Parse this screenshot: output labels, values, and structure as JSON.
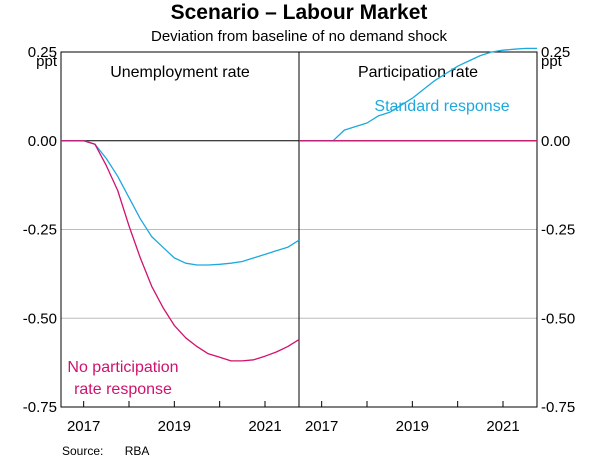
{
  "title": "Scenario – Labour Market",
  "subtitle": "Deviation from baseline of no demand shock",
  "source_label": "Source:",
  "source_value": "RBA",
  "colors": {
    "standard": "#1da9dd",
    "no_participation": "#d0126f",
    "grid": "#bdbdbd",
    "axis": "#000000"
  },
  "chart_data": [
    {
      "type": "line",
      "panel_title": "Unemployment rate",
      "ylabel": "ppt",
      "ylim": [
        -0.75,
        0.25
      ],
      "yticks": [
        0.25,
        0.0,
        -0.25,
        -0.5,
        -0.75
      ],
      "ytick_labels": [
        "0.25",
        "0.00",
        "-0.25",
        "-0.50",
        "-0.75"
      ],
      "xlim": [
        2016.5,
        2021.75
      ],
      "xticks": [
        2017,
        2019,
        2021
      ],
      "xtick_labels": [
        "2017",
        "2019",
        "2021"
      ],
      "series": [
        {
          "name": "Standard response",
          "color_key": "standard",
          "x": [
            2016.5,
            2016.75,
            2017.0,
            2017.25,
            2017.5,
            2017.75,
            2018.0,
            2018.25,
            2018.5,
            2018.75,
            2019.0,
            2019.25,
            2019.5,
            2019.75,
            2020.0,
            2020.25,
            2020.5,
            2020.75,
            2021.0,
            2021.25,
            2021.5,
            2021.75
          ],
          "y": [
            0,
            0,
            0,
            -0.01,
            -0.05,
            -0.1,
            -0.16,
            -0.22,
            -0.27,
            -0.3,
            -0.33,
            -0.345,
            -0.35,
            -0.35,
            -0.348,
            -0.345,
            -0.34,
            -0.33,
            -0.32,
            -0.31,
            -0.3,
            -0.28
          ]
        },
        {
          "name": "No participation rate response",
          "color_key": "no_participation",
          "x": [
            2016.5,
            2016.75,
            2017.0,
            2017.25,
            2017.5,
            2017.75,
            2018.0,
            2018.25,
            2018.5,
            2018.75,
            2019.0,
            2019.25,
            2019.5,
            2019.75,
            2020.0,
            2020.25,
            2020.5,
            2020.75,
            2021.0,
            2021.25,
            2021.5,
            2021.75
          ],
          "y": [
            0,
            0,
            0,
            -0.01,
            -0.07,
            -0.14,
            -0.24,
            -0.33,
            -0.41,
            -0.47,
            -0.52,
            -0.555,
            -0.58,
            -0.6,
            -0.61,
            -0.62,
            -0.62,
            -0.617,
            -0.607,
            -0.595,
            -0.58,
            -0.56
          ]
        }
      ],
      "annotation": [
        "No participation",
        "rate response"
      ]
    },
    {
      "type": "line",
      "panel_title": "Participation rate",
      "ylabel": "ppt",
      "ylim": [
        -0.75,
        0.25
      ],
      "yticks": [
        0.25,
        0.0,
        -0.25,
        -0.5,
        -0.75
      ],
      "ytick_labels": [
        "0.25",
        "0.00",
        "-0.25",
        "-0.50",
        "-0.75"
      ],
      "xlim": [
        2016.5,
        2021.75
      ],
      "xticks": [
        2017,
        2019,
        2021
      ],
      "xtick_labels": [
        "2017",
        "2019",
        "2021"
      ],
      "series": [
        {
          "name": "Standard response",
          "color_key": "standard",
          "x": [
            2016.5,
            2016.75,
            2017.0,
            2017.25,
            2017.5,
            2017.75,
            2018.0,
            2018.25,
            2018.5,
            2018.75,
            2019.0,
            2019.25,
            2019.5,
            2019.75,
            2020.0,
            2020.25,
            2020.5,
            2020.75,
            2021.0,
            2021.25,
            2021.5,
            2021.75
          ],
          "y": [
            0,
            0,
            0,
            0,
            0.03,
            0.04,
            0.05,
            0.07,
            0.08,
            0.1,
            0.12,
            0.145,
            0.17,
            0.19,
            0.21,
            0.225,
            0.24,
            0.25,
            0.255,
            0.258,
            0.26,
            0.26
          ]
        },
        {
          "name": "No participation rate response",
          "color_key": "no_participation",
          "x": [
            2016.5,
            2021.75
          ],
          "y": [
            0,
            0
          ]
        }
      ],
      "annotation": [
        "Standard response"
      ]
    }
  ]
}
